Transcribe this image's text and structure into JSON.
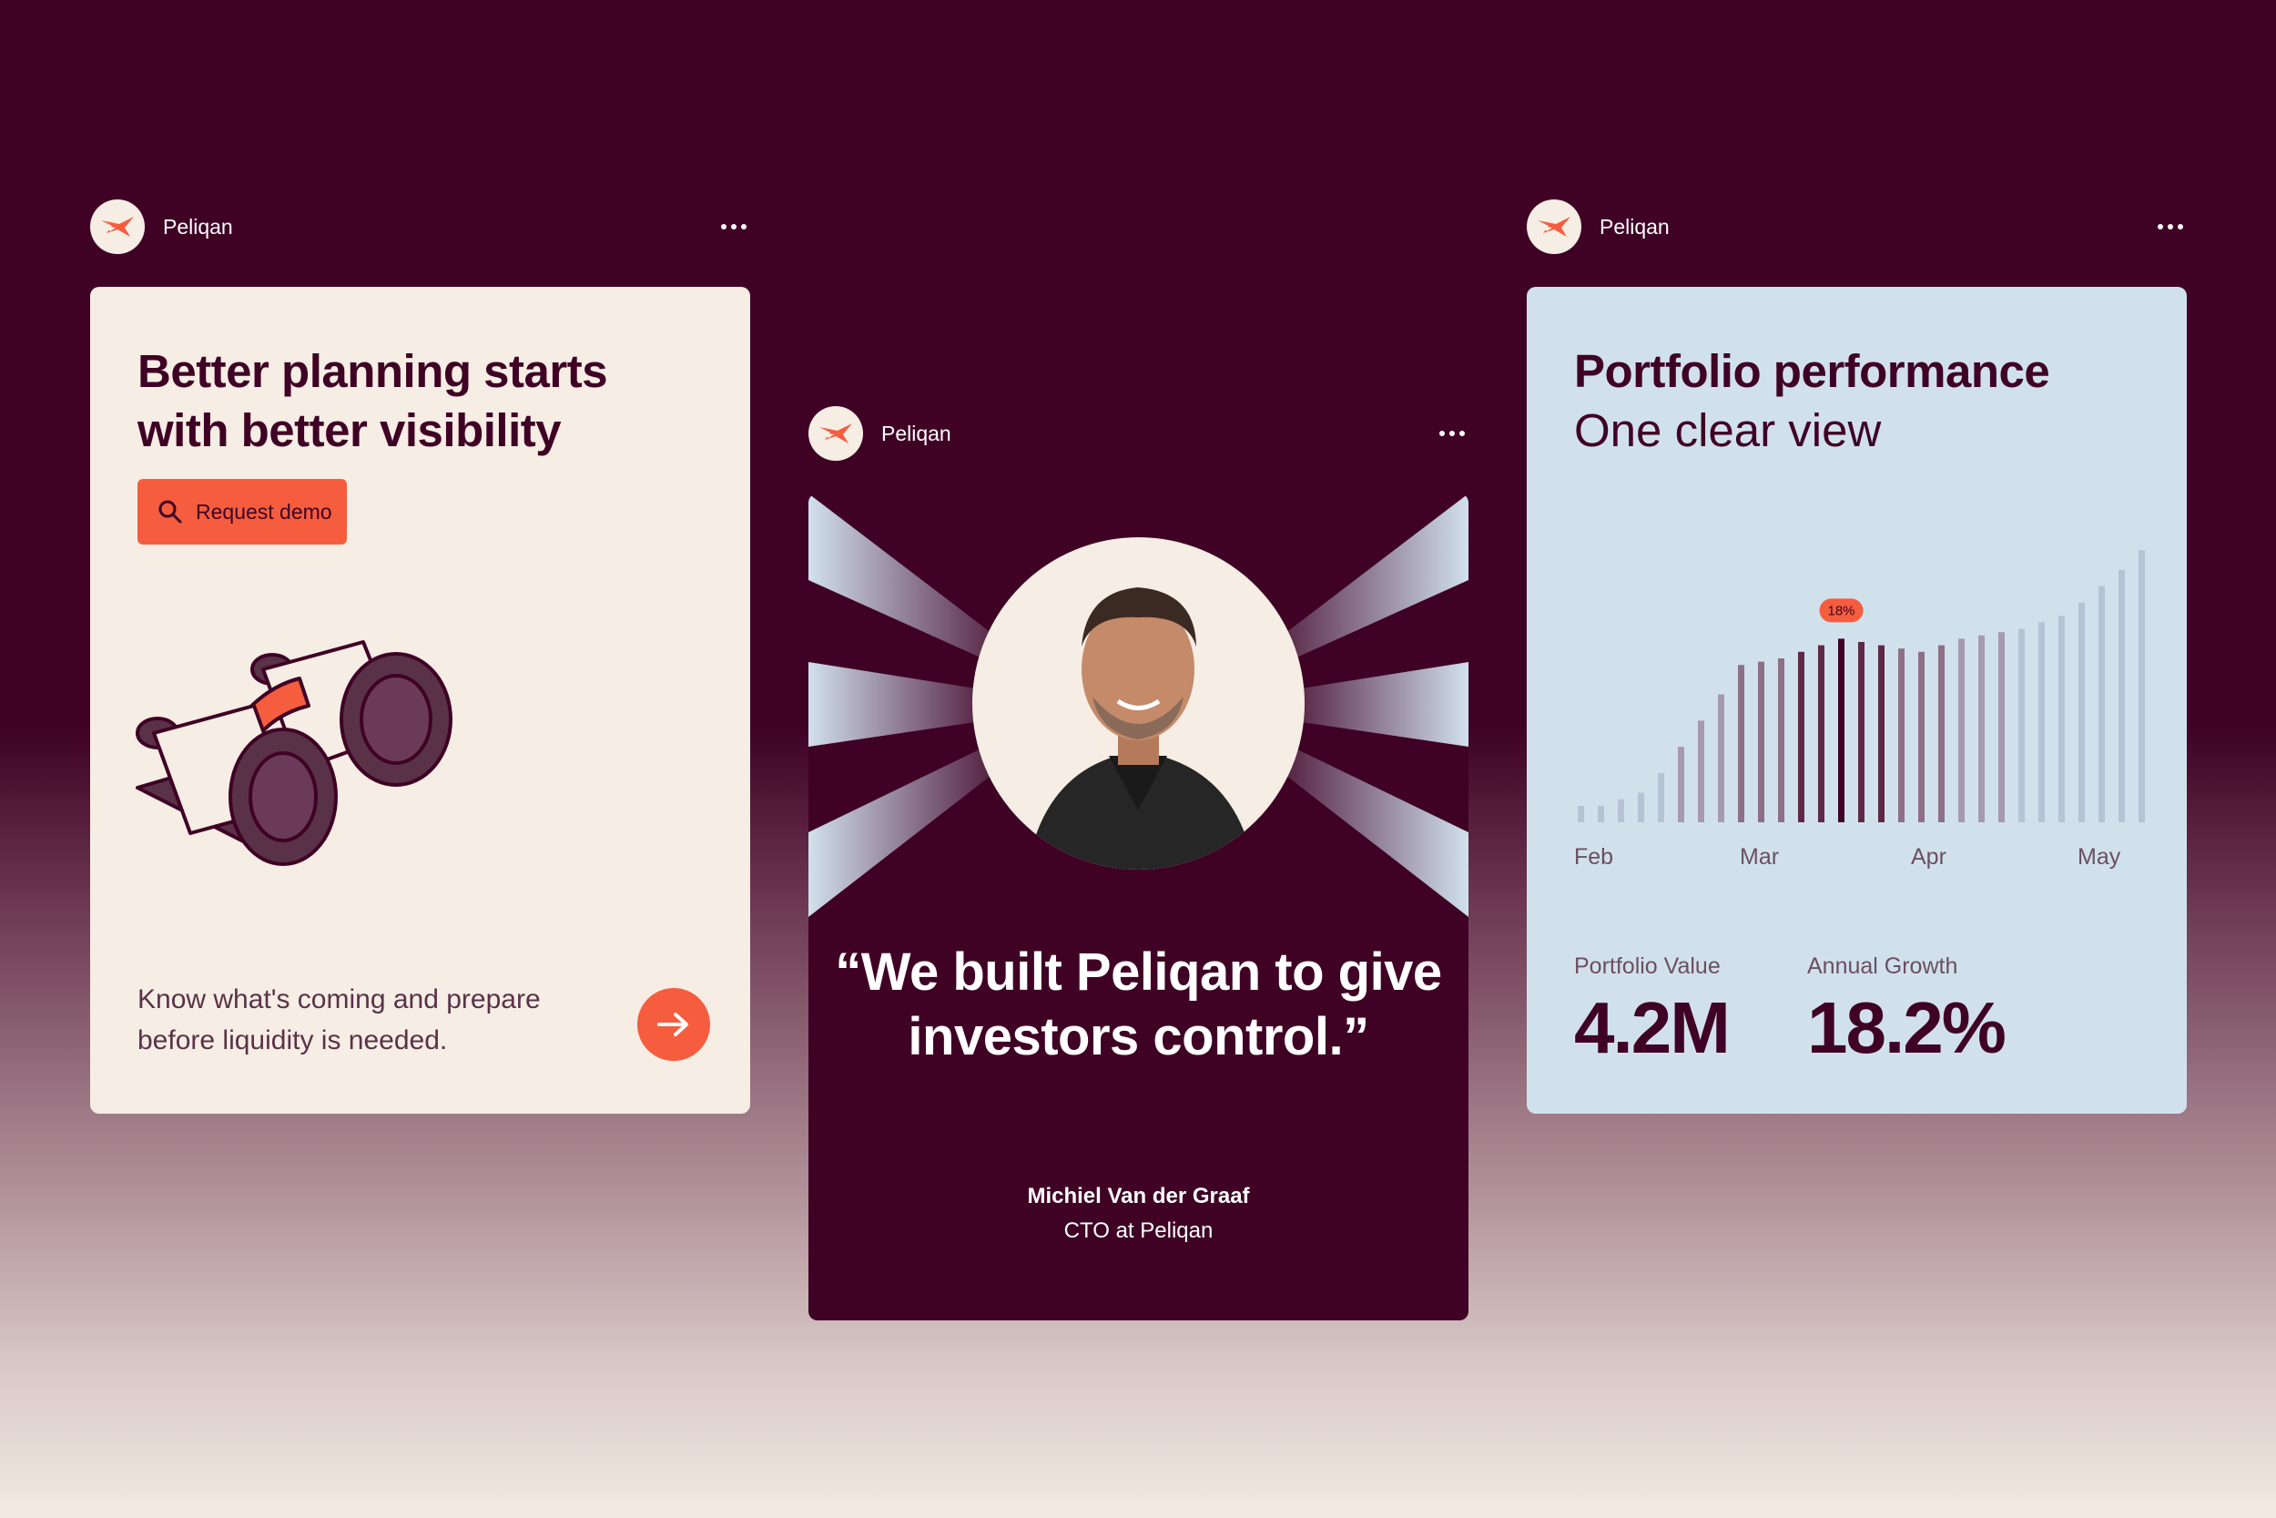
{
  "brand": {
    "name": "Peliqan",
    "logo_icon": "peliqan-bird-icon",
    "accent": "#f55d3e",
    "dark": "#3f0225",
    "cream": "#f6ede4",
    "sky": "#d1e1ec"
  },
  "posts": [
    {
      "account": "Peliqan",
      "title": "Better planning starts with better visibility",
      "cta_label": "Request demo",
      "cta_icon": "search-icon",
      "illustration": "binoculars-illustration",
      "description": "Know what's coming and prepare before liquidity is needed.",
      "arrow_icon": "arrow-right-icon"
    },
    {
      "account": "Peliqan",
      "quote": "“We built Peliqan to give investors control.”",
      "author_name": "Michiel Van der Graaf",
      "author_role": "CTO at Peliqan"
    },
    {
      "account": "Peliqan",
      "title": "Portfolio performance",
      "subtitle": "One clear view",
      "stats": [
        {
          "label": "Portfolio Value",
          "value": "4.2M"
        },
        {
          "label": "Annual Growth",
          "value": "18.2%"
        }
      ]
    }
  ],
  "chart_data": {
    "type": "bar",
    "x_labels": [
      "Feb",
      "Mar",
      "Apr",
      "May"
    ],
    "highlight_label": "18%",
    "highlight_index": 13,
    "values": [
      5,
      5,
      7,
      9,
      15,
      23,
      31,
      39,
      48,
      49,
      50,
      52,
      54,
      56,
      55,
      54,
      53,
      52,
      54,
      56,
      57,
      58,
      59,
      61,
      63,
      67,
      72,
      77,
      83
    ]
  }
}
